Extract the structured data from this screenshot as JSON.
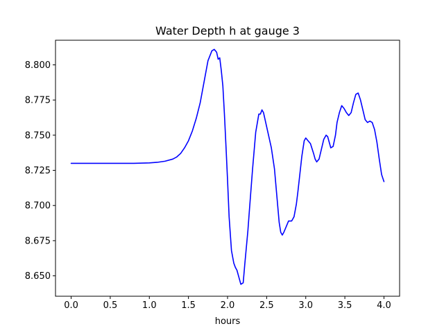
{
  "chart_data": {
    "type": "line",
    "title": "Water Depth h at gauge 3",
    "xlabel": "hours",
    "ylabel": "",
    "xlim": [
      -0.2,
      4.2
    ],
    "ylim": [
      8.6355,
      8.8175
    ],
    "xticks": [
      0.0,
      0.5,
      1.0,
      1.5,
      2.0,
      2.5,
      3.0,
      3.5,
      4.0
    ],
    "xtick_labels": [
      "0.0",
      "0.5",
      "1.0",
      "1.5",
      "2.0",
      "2.5",
      "3.0",
      "3.5",
      "4.0"
    ],
    "yticks": [
      8.65,
      8.675,
      8.7,
      8.725,
      8.75,
      8.775,
      8.8
    ],
    "ytick_labels": [
      "8.650",
      "8.675",
      "8.700",
      "8.725",
      "8.750",
      "8.775",
      "8.800"
    ],
    "grid": false,
    "series": [
      {
        "color": "#0000ff",
        "x": [
          0.0,
          0.4,
          0.8,
          1.0,
          1.1,
          1.2,
          1.3,
          1.35,
          1.4,
          1.45,
          1.5,
          1.55,
          1.6,
          1.65,
          1.7,
          1.75,
          1.8,
          1.83,
          1.86,
          1.88,
          1.9,
          1.92,
          1.94,
          1.96,
          1.98,
          2.0,
          2.02,
          2.05,
          2.08,
          2.1,
          2.12,
          2.15,
          2.17,
          2.2,
          2.22,
          2.24,
          2.26,
          2.28,
          2.32,
          2.36,
          2.4,
          2.42,
          2.44,
          2.46,
          2.48,
          2.5,
          2.52,
          2.54,
          2.56,
          2.6,
          2.63,
          2.66,
          2.68,
          2.7,
          2.72,
          2.75,
          2.78,
          2.82,
          2.85,
          2.88,
          2.9,
          2.92,
          2.95,
          2.98,
          3.0,
          3.03,
          3.06,
          3.1,
          3.12,
          3.14,
          3.17,
          3.2,
          3.23,
          3.26,
          3.28,
          3.3,
          3.32,
          3.35,
          3.38,
          3.4,
          3.43,
          3.46,
          3.49,
          3.52,
          3.55,
          3.58,
          3.61,
          3.64,
          3.67,
          3.7,
          3.73,
          3.76,
          3.79,
          3.82,
          3.85,
          3.88,
          3.91,
          3.94,
          3.97,
          4.0
        ],
        "y": [
          8.73,
          8.73,
          8.73,
          8.7303,
          8.7307,
          8.7315,
          8.733,
          8.7345,
          8.737,
          8.741,
          8.746,
          8.753,
          8.762,
          8.773,
          8.788,
          8.803,
          8.81,
          8.811,
          8.809,
          8.804,
          8.805,
          8.796,
          8.785,
          8.765,
          8.742,
          8.718,
          8.692,
          8.668,
          8.659,
          8.656,
          8.654,
          8.648,
          8.644,
          8.645,
          8.658,
          8.67,
          8.682,
          8.697,
          8.726,
          8.752,
          8.765,
          8.765,
          8.768,
          8.766,
          8.761,
          8.756,
          8.751,
          8.746,
          8.741,
          8.726,
          8.707,
          8.688,
          8.681,
          8.679,
          8.681,
          8.685,
          8.689,
          8.689,
          8.692,
          8.701,
          8.71,
          8.72,
          8.735,
          8.746,
          8.748,
          8.746,
          8.744,
          8.737,
          8.733,
          8.731,
          8.733,
          8.74,
          8.747,
          8.75,
          8.749,
          8.745,
          8.741,
          8.742,
          8.75,
          8.759,
          8.766,
          8.771,
          8.769,
          8.766,
          8.764,
          8.766,
          8.773,
          8.779,
          8.78,
          8.775,
          8.768,
          8.761,
          8.759,
          8.76,
          8.759,
          8.754,
          8.745,
          8.733,
          8.722,
          8.717
        ]
      }
    ]
  }
}
